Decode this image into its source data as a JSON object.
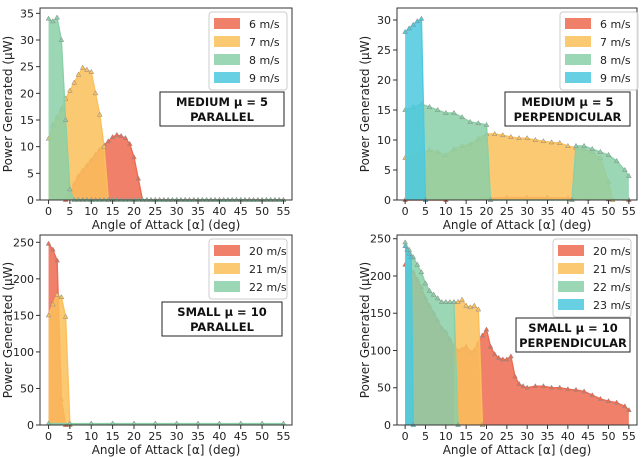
{
  "palette": {
    "red": "#ee6a50",
    "yellow": "#fcc05b",
    "green": "#8ad0a7",
    "cyan": "#4cc9de"
  },
  "chart_data": [
    {
      "type": "area",
      "xlabel": "Angle of Attack [α] (deg)",
      "ylabel": "Power Generated (μW)",
      "xlim": [
        -2,
        57
      ],
      "ylim": [
        0,
        36
      ],
      "xticks": [
        0,
        5,
        10,
        15,
        20,
        25,
        30,
        35,
        40,
        45,
        50,
        55
      ],
      "yticks": [
        0,
        5,
        10,
        15,
        20,
        25,
        30,
        35
      ],
      "annotation": [
        "MEDIUM μ = 5",
        "PARALLEL"
      ],
      "legend_placement": "top-right",
      "series": [
        {
          "name": "6 m/s",
          "color": "red",
          "x": [
            4,
            5,
            6,
            7,
            8,
            9,
            10,
            11,
            12,
            13,
            14,
            15,
            16,
            17,
            18,
            19,
            20,
            21,
            22,
            23,
            24,
            25,
            26,
            27,
            28,
            29,
            30,
            31,
            32,
            33,
            34,
            35,
            36,
            37,
            38,
            39,
            40,
            41,
            42,
            43,
            44,
            45,
            46,
            47,
            48,
            49,
            50,
            51,
            52,
            53,
            54,
            55
          ],
          "y": [
            0,
            1,
            3,
            4.5,
            5.5,
            6.5,
            7.5,
            8.5,
            9.5,
            10.3,
            11,
            11.8,
            12.2,
            12,
            11.6,
            10.5,
            8,
            4,
            0,
            0,
            0,
            0,
            0,
            0,
            0,
            0,
            0,
            0,
            0,
            0,
            0,
            0,
            0,
            0,
            0,
            0,
            0,
            0,
            0,
            0,
            0,
            0,
            0,
            0,
            0,
            0,
            0,
            0,
            0,
            0,
            0,
            0
          ]
        },
        {
          "name": "7 m/s",
          "color": "yellow",
          "x": [
            0,
            1,
            2,
            3,
            4,
            5,
            6,
            7,
            8,
            9,
            10,
            11,
            12,
            13,
            14
          ],
          "y": [
            11.5,
            14,
            15.5,
            17,
            19,
            20.5,
            22,
            23.5,
            24.8,
            24.4,
            24,
            20,
            16,
            10,
            0
          ]
        },
        {
          "name": "8 m/s",
          "color": "green",
          "x": [
            0,
            1,
            2,
            3,
            4,
            5,
            6,
            7,
            8,
            9,
            10,
            11,
            12,
            13,
            14,
            15,
            16,
            17,
            18,
            19,
            20,
            21,
            22,
            23,
            24,
            25,
            26,
            27,
            28,
            29,
            30,
            31,
            32,
            33,
            34,
            35,
            36,
            37,
            38,
            39,
            40,
            41,
            42,
            43,
            44,
            45,
            46,
            47,
            48,
            49,
            50,
            51,
            52,
            53,
            54,
            55
          ],
          "y": [
            34,
            33.5,
            34.2,
            30,
            15,
            2,
            0,
            0,
            0,
            0,
            0,
            0,
            0,
            0,
            0,
            0,
            0,
            0,
            0,
            0,
            0,
            0,
            0,
            0,
            0,
            0,
            0,
            0,
            0,
            0,
            0,
            0,
            0,
            0,
            0,
            0,
            0,
            0,
            0,
            0,
            0,
            0,
            0,
            0,
            0,
            0,
            0,
            0,
            0,
            0,
            0,
            0,
            0,
            0,
            0,
            0
          ]
        },
        {
          "name": "9 m/s",
          "color": "cyan",
          "x": [],
          "y": []
        }
      ]
    },
    {
      "type": "area",
      "xlabel": "Angle of Attack [α] (deg)",
      "ylabel": "Power Generated (μW)",
      "xlim": [
        -2,
        57
      ],
      "ylim": [
        0,
        32
      ],
      "xticks": [
        0,
        5,
        10,
        15,
        20,
        25,
        30,
        35,
        40,
        45,
        50,
        55
      ],
      "yticks": [
        0,
        5,
        10,
        15,
        20,
        25,
        30
      ],
      "annotation": [
        "MEDIUM μ = 5",
        "PERPENDICULAR"
      ],
      "legend_placement": "top-right",
      "series": [
        {
          "name": "6 m/s",
          "color": "red",
          "x": [
            0,
            5,
            10,
            15,
            20,
            25,
            30,
            35,
            40,
            45,
            50,
            55
          ],
          "y": [
            0,
            0,
            0,
            0.2,
            0.3,
            0.4,
            0.4,
            0.4,
            0.3,
            0.2,
            0.1,
            0
          ]
        },
        {
          "name": "7 m/s",
          "color": "yellow",
          "x": [
            0,
            2,
            4,
            6,
            8,
            10,
            12,
            14,
            16,
            18,
            20,
            22,
            24,
            26,
            28,
            30,
            32,
            34,
            36,
            38,
            40,
            42,
            44,
            46,
            48,
            50,
            51
          ],
          "y": [
            7,
            7.5,
            8,
            8.3,
            8,
            7.5,
            8.5,
            9,
            9.3,
            10.2,
            11,
            11,
            10.8,
            10.5,
            10.3,
            10.3,
            10,
            9.8,
            9.6,
            9.5,
            9,
            8.7,
            8.5,
            8,
            7,
            3,
            0
          ]
        },
        {
          "name": "8 m/s",
          "color": "green",
          "x": [
            0,
            2,
            4,
            6,
            8,
            10,
            12,
            14,
            16,
            18,
            20,
            21,
            41,
            42,
            44,
            46,
            48,
            50,
            52,
            54,
            55
          ],
          "y": [
            15,
            15.5,
            16,
            15.5,
            15,
            14.5,
            14.5,
            13.8,
            13,
            12.8,
            12.5,
            0,
            0,
            9,
            9,
            8.5,
            8,
            7.5,
            6.5,
            5,
            4
          ]
        },
        {
          "name": "9 m/s",
          "color": "cyan",
          "x": [
            0,
            1,
            2,
            3,
            4,
            5
          ],
          "y": [
            28,
            28.6,
            29.2,
            29.8,
            30.2,
            0
          ]
        }
      ]
    },
    {
      "type": "area",
      "xlabel": "Angle of Attack [α] (deg)",
      "ylabel": "Power Generated (μW)",
      "xlim": [
        -2,
        57
      ],
      "ylim": [
        0,
        260
      ],
      "xticks": [
        0,
        5,
        10,
        15,
        20,
        25,
        30,
        35,
        40,
        45,
        50,
        55
      ],
      "yticks": [
        0,
        50,
        100,
        150,
        200,
        250
      ],
      "annotation": [
        "SMALL μ = 10",
        "PARALLEL"
      ],
      "legend_placement": "top-right",
      "series": [
        {
          "name": "20 m/s",
          "color": "red",
          "x": [
            0,
            1,
            2,
            3,
            4
          ],
          "y": [
            248,
            240,
            225,
            35,
            0
          ]
        },
        {
          "name": "21 m/s",
          "color": "yellow",
          "x": [
            0,
            1,
            2,
            3,
            4,
            5
          ],
          "y": [
            150,
            165,
            178,
            175,
            148,
            0
          ]
        },
        {
          "name": "22 m/s",
          "color": "green",
          "x": [
            0,
            5,
            10,
            15,
            20,
            25,
            30,
            35,
            40,
            45,
            50,
            55
          ],
          "y": [
            2,
            2,
            2,
            2,
            2,
            2,
            2,
            2,
            2,
            2,
            2,
            2
          ]
        }
      ]
    },
    {
      "type": "area",
      "xlabel": "Angle of Attack [α] (deg)",
      "ylabel": "Power Generated (μW)",
      "xlim": [
        -2,
        57
      ],
      "ylim": [
        0,
        255
      ],
      "xticks": [
        0,
        5,
        10,
        15,
        20,
        25,
        30,
        35,
        40,
        45,
        50,
        55
      ],
      "yticks": [
        0,
        50,
        100,
        150,
        200,
        250
      ],
      "annotation": [
        "SMALL μ = 10",
        "PERPENDICULAR"
      ],
      "legend_placement": "top-right",
      "series": [
        {
          "name": "20 m/s",
          "color": "red",
          "x": [
            0,
            1,
            2,
            3,
            4,
            5,
            6,
            7,
            8,
            9,
            10,
            11,
            12,
            13,
            14,
            15,
            16,
            17,
            18,
            19,
            20,
            21,
            22,
            23,
            24,
            25,
            26,
            27,
            28,
            29,
            30,
            32,
            34,
            36,
            38,
            40,
            42,
            44,
            46,
            48,
            50,
            52,
            54,
            55
          ],
          "y": [
            215,
            210,
            205,
            195,
            185,
            170,
            160,
            150,
            140,
            130,
            125,
            115,
            105,
            100,
            102,
            105,
            98,
            100,
            110,
            120,
            128,
            105,
            95,
            90,
            88,
            88,
            92,
            65,
            55,
            52,
            50,
            52,
            52,
            50,
            50,
            48,
            47,
            45,
            40,
            35,
            32,
            30,
            25,
            20
          ]
        },
        {
          "name": "21 m/s",
          "color": "yellow",
          "x": [
            12,
            13,
            14,
            15,
            16,
            17,
            18,
            19
          ],
          "y": [
            165,
            165,
            168,
            160,
            158,
            160,
            155,
            0
          ]
        },
        {
          "name": "22 m/s",
          "color": "green",
          "x": [
            0,
            1,
            2,
            3,
            4,
            5,
            6,
            7,
            8,
            9,
            10,
            11,
            12,
            13
          ],
          "y": [
            245,
            235,
            225,
            215,
            205,
            190,
            180,
            175,
            170,
            165,
            165,
            165,
            165,
            0
          ]
        },
        {
          "name": "23 m/s",
          "color": "cyan",
          "x": [
            0,
            0.5,
            1,
            1.5,
            2
          ],
          "y": [
            240,
            235,
            230,
            225,
            0
          ]
        }
      ]
    }
  ]
}
